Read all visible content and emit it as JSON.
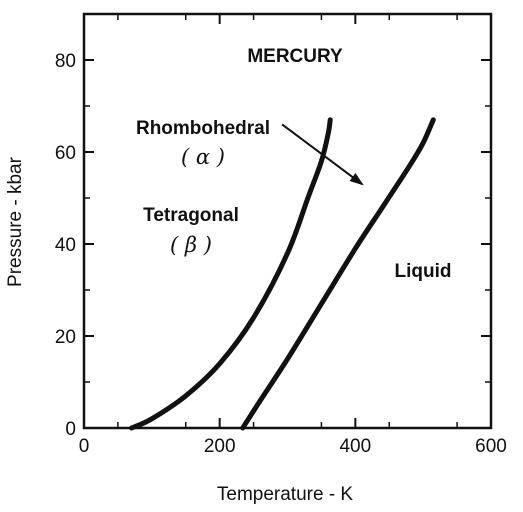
{
  "chart_data": {
    "type": "line",
    "title": "MERCURY",
    "xlabel": "Temperature - K",
    "ylabel": "Pressure - kbar",
    "xlim": [
      0,
      600
    ],
    "ylim": [
      0,
      90
    ],
    "xticks": [
      0,
      200,
      400,
      600
    ],
    "xtick_labels": [
      "0",
      "200",
      "400",
      "600"
    ],
    "yticks": [
      0,
      20,
      40,
      60,
      80
    ],
    "ytick_labels": [
      "0",
      "20",
      "40",
      "60",
      "80"
    ],
    "grid": false,
    "series": [
      {
        "x": [
          70,
          100,
          150,
          200,
          250,
          300,
          330,
          350,
          360,
          363
        ],
        "y": [
          0,
          2,
          7,
          14,
          24,
          38,
          50,
          58,
          64,
          67
        ]
      },
      {
        "x": [
          234,
          260,
          300,
          350,
          400,
          440,
          480,
          500,
          515
        ],
        "y": [
          0,
          6,
          15,
          27,
          39,
          48,
          57,
          62,
          67
        ]
      }
    ],
    "annotations": [
      {
        "text": "Rhombohedral",
        "symbol": "( α )",
        "arrow_from": [
          292,
          66
        ],
        "arrow_to": [
          410,
          53
        ]
      },
      {
        "text": "Tetragonal",
        "symbol": "( β )"
      },
      {
        "text": "Liquid"
      }
    ]
  }
}
